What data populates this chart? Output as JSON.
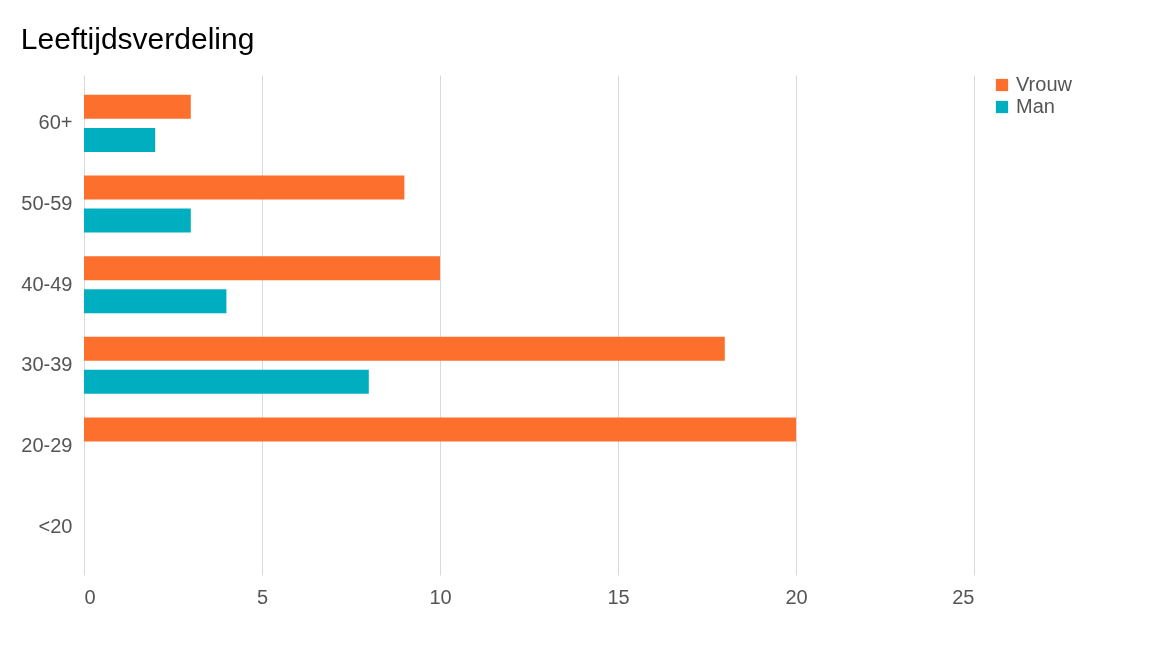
{
  "chart_data": {
    "type": "bar",
    "orientation": "horizontal",
    "title": "Leeftijdsverdeling",
    "categories": [
      "60+",
      "50-59",
      "40-49",
      "30-39",
      "20-29",
      "<20"
    ],
    "series": [
      {
        "name": "Vrouw",
        "color": "#fd6f2c",
        "values": [
          3,
          9,
          10,
          18,
          20,
          null
        ]
      },
      {
        "name": "Man",
        "color": "#00afbf",
        "values": [
          2,
          3,
          4,
          8,
          null,
          null
        ]
      }
    ],
    "xlim": [
      0,
      25
    ],
    "xticks": [
      0,
      5,
      10,
      15,
      20,
      25
    ],
    "grid": "x",
    "legend": "right"
  }
}
